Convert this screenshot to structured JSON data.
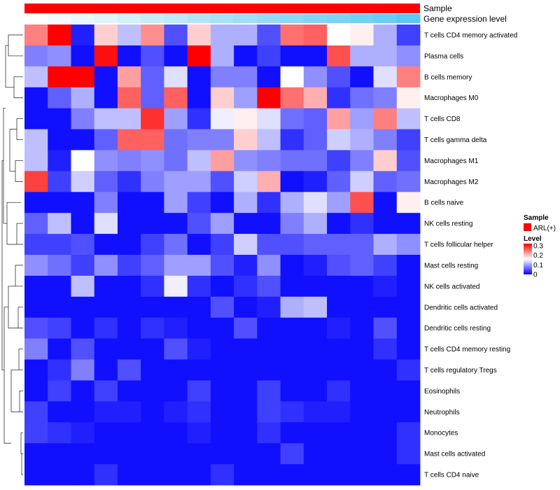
{
  "chart_data": {
    "type": "heatmap",
    "annotations": {
      "sample_label": "Sample",
      "expression_label": "Gene expression level"
    },
    "rows": [
      "T cells CD4 memory activated",
      "Plasma cells",
      "B cells memory",
      "Macrophages M0",
      "T cells CD8",
      "T cells gamma delta",
      "Macrophages M1",
      "Macrophages M2",
      "B cells naive",
      "NK cells resting",
      "T cells follicular helper",
      "Mast cells resting",
      "NK cells activated",
      "Dendritic cells activated",
      "Dendritic cells resting",
      "T cells CD4 memory resting",
      "T cells regulatory  Tregs",
      "Eosinophils",
      "Neutrophils",
      "Monocytes",
      "Mast cells activated",
      "T cells CD4 naive"
    ],
    "values": [
      [
        0.24,
        0.32,
        0.02,
        0.19,
        0.12,
        0.23,
        0.05,
        0.19,
        0.11,
        0.11,
        0.05,
        0.25,
        0.26,
        0.16,
        0.17,
        0.11,
        0.04
      ],
      [
        0.08,
        0.09,
        0.01,
        0.31,
        0.01,
        0.05,
        0.01,
        0.32,
        0.11,
        0.01,
        0.04,
        0.01,
        0.01,
        0.27,
        0.11,
        0.11,
        0.09
      ],
      [
        0.12,
        0.32,
        0.32,
        0.01,
        0.22,
        0.06,
        0.14,
        0.01,
        0.08,
        0.08,
        0.01,
        0.16,
        0.09,
        0.05,
        0.01,
        0.14,
        0.24
      ],
      [
        0.01,
        0.06,
        0.11,
        0.01,
        0.26,
        0.06,
        0.26,
        0.01,
        0.19,
        0.1,
        0.32,
        0.25,
        0.21,
        0.03,
        0.07,
        0.08,
        0.17
      ],
      [
        0.01,
        0.01,
        0.08,
        0.12,
        0.12,
        0.29,
        0.1,
        0.03,
        0.15,
        0.17,
        0.14,
        0.07,
        0.06,
        0.22,
        0.1,
        0.24,
        0.12
      ],
      [
        0.12,
        0.01,
        0.01,
        0.06,
        0.26,
        0.26,
        0.07,
        0.08,
        0.08,
        0.19,
        0.12,
        0.03,
        0.06,
        0.13,
        0.11,
        0.08,
        0.04
      ],
      [
        0.12,
        0.02,
        0.16,
        0.09,
        0.08,
        0.09,
        0.07,
        0.12,
        0.22,
        0.09,
        0.08,
        0.07,
        0.07,
        0.04,
        0.08,
        0.19,
        0.05
      ],
      [
        0.28,
        0.04,
        0.13,
        0.06,
        0.03,
        0.08,
        0.1,
        0.1,
        0.05,
        0.13,
        0.21,
        0.01,
        0.02,
        0.06,
        0.13,
        0.06,
        0.07
      ],
      [
        0.01,
        0.01,
        0.01,
        0.08,
        0.01,
        0.01,
        0.1,
        0.04,
        0.01,
        0.11,
        0.03,
        0.11,
        0.14,
        0.1,
        0.27,
        0.01,
        0.17
      ],
      [
        0.06,
        0.12,
        0.01,
        0.14,
        0.01,
        0.01,
        0.01,
        0.05,
        0.1,
        0.01,
        0.01,
        0.08,
        0.11,
        0.01,
        0.03,
        0.01,
        0.01
      ],
      [
        0.04,
        0.04,
        0.05,
        0.01,
        0.01,
        0.04,
        0.07,
        0.01,
        0.04,
        0.13,
        0.05,
        0.05,
        0.06,
        0.06,
        0.06,
        0.11,
        0.09
      ],
      [
        0.09,
        0.07,
        0.04,
        0.09,
        0.04,
        0.06,
        0.1,
        0.1,
        0.05,
        0.02,
        0.09,
        0.01,
        0.02,
        0.05,
        0.06,
        0.04,
        0.01
      ],
      [
        0.01,
        0.01,
        0.12,
        0.01,
        0.01,
        0.03,
        0.15,
        0.03,
        0.01,
        0.03,
        0.05,
        0.01,
        0.01,
        0.01,
        0.01,
        0.02,
        0.01
      ],
      [
        0.01,
        0.01,
        0.01,
        0.01,
        0.01,
        0.01,
        0.01,
        0.01,
        0.05,
        0.01,
        0.02,
        0.11,
        0.12,
        0.01,
        0.01,
        0.01,
        0.01
      ],
      [
        0.05,
        0.04,
        0.01,
        0.03,
        0.01,
        0.03,
        0.02,
        0.01,
        0.01,
        0.05,
        0.01,
        0.01,
        0.01,
        0.02,
        0.01,
        0.05,
        0.01
      ],
      [
        0.08,
        0.01,
        0.05,
        0.01,
        0.01,
        0.01,
        0.05,
        0.02,
        0.01,
        0.01,
        0.01,
        0.01,
        0.01,
        0.01,
        0.01,
        0.03,
        0.01
      ],
      [
        0.01,
        0.03,
        0.08,
        0.01,
        0.05,
        0.01,
        0.01,
        0.01,
        0.01,
        0.01,
        0.01,
        0.01,
        0.01,
        0.01,
        0.01,
        0.01,
        0.03
      ],
      [
        0.01,
        0.04,
        0.01,
        0.04,
        0.01,
        0.01,
        0.01,
        0.04,
        0.01,
        0.01,
        0.04,
        0.01,
        0.01,
        0.03,
        0.01,
        0.01,
        0.01
      ],
      [
        0.04,
        0.01,
        0.01,
        0.02,
        0.02,
        0.01,
        0.02,
        0.03,
        0.01,
        0.01,
        0.04,
        0.03,
        0.02,
        0.02,
        0.01,
        0.01,
        0.01
      ],
      [
        0.04,
        0.03,
        0.02,
        0.01,
        0.01,
        0.01,
        0.01,
        0.02,
        0.01,
        0.01,
        0.03,
        0.01,
        0.01,
        0.01,
        0.01,
        0.01,
        0.03
      ],
      [
        0.01,
        0.01,
        0.01,
        0.01,
        0.01,
        0.01,
        0.01,
        0.01,
        0.01,
        0.01,
        0.01,
        0.04,
        0.01,
        0.01,
        0.01,
        0.01,
        0.03
      ],
      [
        0.01,
        0.01,
        0.01,
        0.03,
        0.01,
        0.01,
        0.01,
        0.01,
        0.03,
        0.01,
        0.01,
        0.01,
        0.01,
        0.01,
        0.01,
        0.01,
        0.01
      ]
    ],
    "sample_group": "ARL(+)",
    "sample_color": "#ff0000",
    "expression_levels": [
      0.0,
      0.06,
      0.12,
      0.18,
      0.24,
      0.3,
      0.36,
      0.42,
      0.48,
      0.54,
      0.6,
      0.66,
      0.72,
      0.78,
      0.84,
      0.9,
      1.0
    ],
    "expression_colors": [
      "#ffffff",
      "#a5e0f5",
      "#5bc8f5"
    ],
    "color_scale": {
      "min": 0,
      "max": 0.32,
      "colors": [
        "#0000ff",
        "#ffffff",
        "#ff0000"
      ]
    },
    "legend": {
      "sample_title": "Sample",
      "level_title": "Level",
      "ticks": [
        "0.3",
        "0.2",
        "0.1",
        "0"
      ],
      "tick_values": [
        0.3,
        0.2,
        0.1,
        0
      ]
    }
  }
}
